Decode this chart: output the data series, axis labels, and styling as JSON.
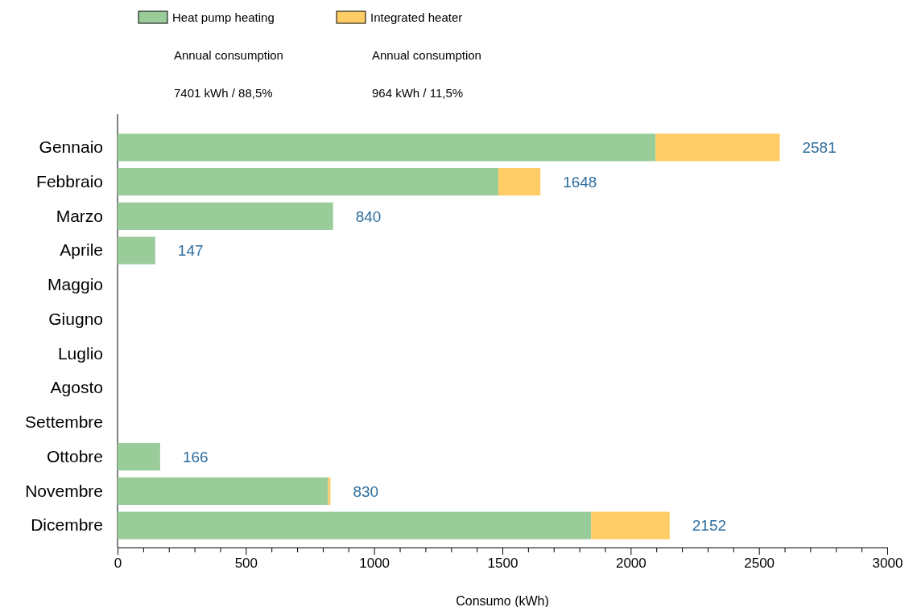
{
  "chart_data": {
    "type": "bar",
    "orientation": "horizontal",
    "stacked": true,
    "categories": [
      "Gennaio",
      "Febbraio",
      "Marzo",
      "Aprile",
      "Maggio",
      "Giugno",
      "Luglio",
      "Agosto",
      "Settembre",
      "Ottobre",
      "Novembre",
      "Dicembre"
    ],
    "series": [
      {
        "name": "Heat pump heating",
        "color": "#99cc99",
        "values": [
          2097,
          1484,
          840,
          147,
          0,
          0,
          0,
          0,
          0,
          166,
          821,
          1846
        ]
      },
      {
        "name": "Integrated heater",
        "color": "#ffcc66",
        "values": [
          484,
          164,
          0,
          0,
          0,
          0,
          0,
          0,
          0,
          0,
          9,
          306
        ]
      }
    ],
    "totals": [
      "2581",
      "1648",
      "840",
      "147",
      null,
      null,
      null,
      null,
      null,
      "166",
      "830",
      "2152"
    ],
    "xlim": [
      0,
      3000
    ],
    "xticks": [
      0,
      {
        "value": 100,
        "label": null
      },
      {
        "value": 200,
        "label": null
      },
      {
        "value": 300,
        "label": null
      },
      {
        "value": 400,
        "label": null
      },
      500,
      {
        "value": 600,
        "label": null
      },
      {
        "value": 700,
        "label": null
      },
      {
        "value": 800,
        "label": null
      },
      {
        "value": 900,
        "label": null
      },
      1000,
      {
        "value": 1100,
        "label": null
      },
      {
        "value": 1200,
        "label": null
      },
      {
        "value": 1300,
        "label": null
      },
      {
        "value": 1400,
        "label": null
      },
      1500,
      {
        "value": 1600,
        "label": null
      },
      {
        "value": 1700,
        "label": null
      },
      {
        "value": 1800,
        "label": null
      },
      {
        "value": 1900,
        "label": null
      },
      2000,
      {
        "value": 2100,
        "label": null
      },
      {
        "value": 2200,
        "label": null
      },
      {
        "value": 2300,
        "label": null
      },
      {
        "value": 2400,
        "label": null
      },
      2500,
      {
        "value": 2600,
        "label": null
      },
      {
        "value": 2700,
        "label": null
      },
      {
        "value": 2800,
        "label": null
      },
      {
        "value": 2900,
        "label": null
      },
      3000
    ],
    "xlabel": "Consumo (kWh)",
    "legend": "top",
    "grid": false,
    "annotations": [
      "Annual consumption",
      "Annual consumption",
      "7401 kWh / 88,5%",
      "964 kWh / 11,5%"
    ]
  }
}
